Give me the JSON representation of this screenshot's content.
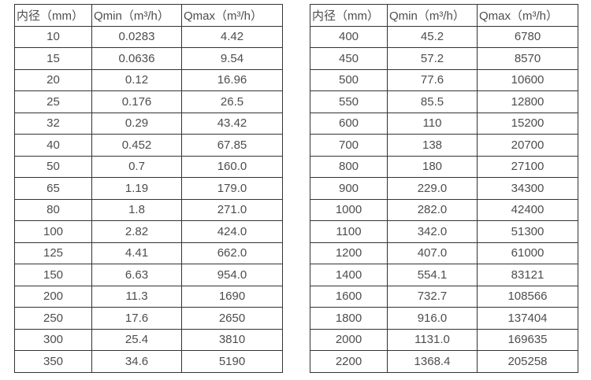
{
  "colors": {
    "background": "#ffffff",
    "border": "#333333",
    "text": "#4d4d4d"
  },
  "chart_data": [
    {
      "type": "table",
      "name": "flow-spec-table-small-diameters",
      "headers": [
        "内径（mm）",
        "Qmin（m³/h）",
        "Qmax（m³/h）"
      ],
      "rows": [
        [
          "10",
          "0.0283",
          "4.42"
        ],
        [
          "15",
          "0.0636",
          "9.54"
        ],
        [
          "20",
          "0.12",
          "16.96"
        ],
        [
          "25",
          "0.176",
          "26.5"
        ],
        [
          "32",
          "0.29",
          "43.42"
        ],
        [
          "40",
          "0.452",
          "67.85"
        ],
        [
          "50",
          "0.7",
          "160.0"
        ],
        [
          "65",
          "1.19",
          "179.0"
        ],
        [
          "80",
          "1.8",
          "271.0"
        ],
        [
          "100",
          "2.82",
          "424.0"
        ],
        [
          "125",
          "4.41",
          "662.0"
        ],
        [
          "150",
          "6.63",
          "954.0"
        ],
        [
          "200",
          "11.3",
          "1690"
        ],
        [
          "250",
          "17.6",
          "2650"
        ],
        [
          "300",
          "25.4",
          "3810"
        ],
        [
          "350",
          "34.6",
          "5190"
        ]
      ]
    },
    {
      "type": "table",
      "name": "flow-spec-table-large-diameters",
      "headers": [
        "内径（mm）",
        "Qmin（m³/h）",
        "Qmax（m³/h）"
      ],
      "rows": [
        [
          "400",
          "45.2",
          "6780"
        ],
        [
          "450",
          "57.2",
          "8570"
        ],
        [
          "500",
          "77.6",
          "10600"
        ],
        [
          "550",
          "85.5",
          "12800"
        ],
        [
          "600",
          "110",
          "15200"
        ],
        [
          "700",
          "138",
          "20700"
        ],
        [
          "800",
          "180",
          "27100"
        ],
        [
          "900",
          "229.0",
          "34300"
        ],
        [
          "1000",
          "282.0",
          "42400"
        ],
        [
          "1100",
          "342.0",
          "51300"
        ],
        [
          "1200",
          "407.0",
          "61000"
        ],
        [
          "1400",
          "554.1",
          "83121"
        ],
        [
          "1600",
          "732.7",
          "108566"
        ],
        [
          "1800",
          "916.0",
          "137404"
        ],
        [
          "2000",
          "1131.0",
          "169635"
        ],
        [
          "2200",
          "1368.4",
          "205258"
        ]
      ]
    }
  ]
}
